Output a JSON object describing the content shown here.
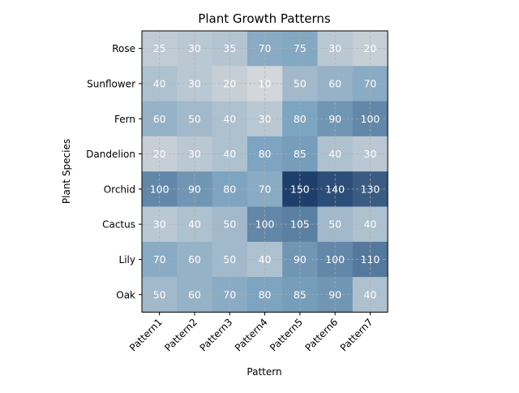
{
  "chart_data": {
    "type": "heatmap",
    "title": "Plant Growth Patterns",
    "xlabel": "Pattern",
    "ylabel": "Plant Species",
    "x_categories": [
      "Pattern1",
      "Pattern2",
      "Pattern3",
      "Pattern4",
      "Pattern5",
      "Pattern6",
      "Pattern7"
    ],
    "y_categories": [
      "Rose",
      "Sunflower",
      "Fern",
      "Dandelion",
      "Orchid",
      "Cactus",
      "Lily",
      "Oak"
    ],
    "values": [
      [
        25,
        30,
        35,
        70,
        75,
        30,
        20
      ],
      [
        40,
        30,
        20,
        10,
        50,
        60,
        70
      ],
      [
        60,
        50,
        40,
        30,
        80,
        90,
        100
      ],
      [
        20,
        30,
        40,
        80,
        85,
        40,
        30
      ],
      [
        100,
        90,
        80,
        70,
        150,
        140,
        130
      ],
      [
        30,
        40,
        50,
        100,
        105,
        50,
        40
      ],
      [
        70,
        60,
        50,
        40,
        90,
        100,
        110
      ],
      [
        50,
        60,
        70,
        80,
        85,
        90,
        40
      ]
    ],
    "value_range": [
      10,
      150
    ],
    "grid": true,
    "colormap": {
      "low": "#d3d6da",
      "mid": "#7da4c0",
      "high": "#1f3f6b"
    },
    "label_color": "#ffffff"
  }
}
